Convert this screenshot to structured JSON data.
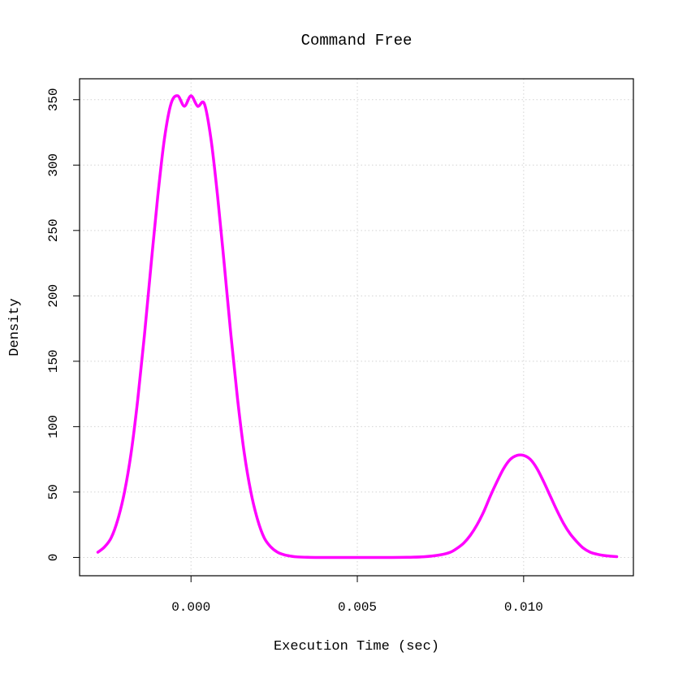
{
  "chart_data": {
    "type": "line",
    "title": "Command Free",
    "xlabel": "Execution Time (sec)",
    "ylabel": "Density",
    "xlim": [
      -0.00335,
      0.0133
    ],
    "ylim": [
      -14,
      366
    ],
    "x_ticks": [
      0.0,
      0.005,
      0.01
    ],
    "x_tick_labels": [
      "0.000",
      "0.005",
      "0.010"
    ],
    "y_ticks": [
      0,
      50,
      100,
      150,
      200,
      250,
      300,
      350
    ],
    "y_tick_labels": [
      "0",
      "50",
      "100",
      "150",
      "200",
      "250",
      "300",
      "350"
    ],
    "grid": true,
    "series": [
      {
        "color": "#ff00ff",
        "x": [
          -0.0028,
          -0.0026,
          -0.0024,
          -0.0022,
          -0.002,
          -0.0018,
          -0.0016,
          -0.0014,
          -0.0012,
          -0.001,
          -0.0008,
          -0.0006,
          -0.0004,
          -0.0002,
          0.0,
          0.0002,
          0.0004,
          0.0006,
          0.0008,
          0.001,
          0.0012,
          0.0014,
          0.0016,
          0.0018,
          0.002,
          0.0022,
          0.0024,
          0.0026,
          0.0028,
          0.003,
          0.0032,
          0.0035,
          0.004,
          0.005,
          0.006,
          0.0065,
          0.007,
          0.0075,
          0.0078,
          0.008,
          0.0082,
          0.0084,
          0.0086,
          0.0088,
          0.009,
          0.0092,
          0.0094,
          0.0096,
          0.0098,
          0.01,
          0.0102,
          0.0104,
          0.0106,
          0.0108,
          0.011,
          0.0112,
          0.0114,
          0.0116,
          0.0118,
          0.012,
          0.0122,
          0.0124,
          0.0126,
          0.0128
        ],
        "y": [
          4,
          8,
          15,
          29,
          50,
          80,
          121,
          170,
          224,
          276,
          320,
          347,
          353,
          345,
          353,
          345,
          347,
          320,
          276,
          224,
          170,
          121,
          80,
          50,
          29,
          15,
          8,
          4,
          2,
          1,
          0.4,
          0.1,
          0,
          0,
          0,
          0.1,
          0.5,
          2,
          4,
          7,
          11,
          17,
          25,
          35,
          47,
          58,
          68,
          75,
          78,
          78,
          75,
          68,
          58,
          47,
          36,
          26,
          18,
          12,
          7,
          4,
          2.5,
          1.5,
          1,
          0.6
        ]
      }
    ]
  }
}
